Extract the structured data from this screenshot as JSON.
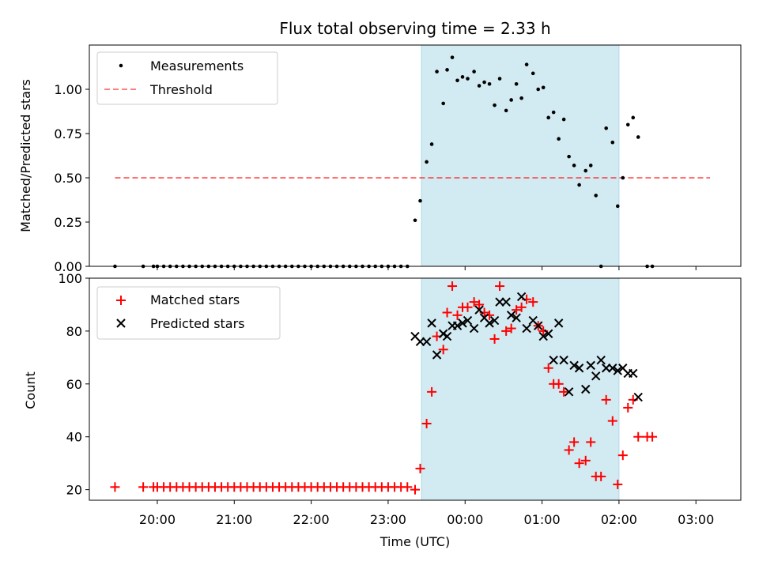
{
  "figure": {
    "title": "Flux total observing time = 2.33 h",
    "xlabel": "Time (UTC)"
  },
  "x_ticks": [
    "20:00",
    "21:00",
    "22:00",
    "23:00",
    "00:00",
    "01:00",
    "02:00",
    "03:00"
  ],
  "chart_data": [
    {
      "type": "scatter",
      "ylabel": "Matched/Predicted stars",
      "xlim": [
        "19:07",
        "03:35"
      ],
      "ylim": [
        0,
        1.25
      ],
      "y_ticks": [
        "0.00",
        "0.25",
        "0.50",
        "0.75",
        "1.00"
      ],
      "highlight_span": [
        "23:26",
        "02:00"
      ],
      "highlight_color": "#add8e6",
      "legend": {
        "placement": "upper left",
        "entries": [
          "Measurements",
          "Threshold"
        ]
      },
      "threshold": {
        "name": "Threshold",
        "value": 0.5,
        "x_start": "19:27",
        "x_end": "03:11",
        "color": "#ff0000",
        "style": "dashed"
      },
      "series": [
        {
          "name": "Measurements",
          "marker": "dot",
          "color": "#000000",
          "points": [
            [
              "19:27",
              0
            ],
            [
              "19:49",
              0
            ],
            [
              "19:57",
              0
            ],
            [
              "20:00",
              0
            ],
            [
              "20:05",
              0
            ],
            [
              "20:10",
              0
            ],
            [
              "20:15",
              0
            ],
            [
              "20:20",
              0
            ],
            [
              "20:25",
              0
            ],
            [
              "20:30",
              0
            ],
            [
              "20:35",
              0
            ],
            [
              "20:40",
              0
            ],
            [
              "20:45",
              0
            ],
            [
              "20:50",
              0
            ],
            [
              "20:55",
              0
            ],
            [
              "21:00",
              0
            ],
            [
              "21:05",
              0
            ],
            [
              "21:10",
              0
            ],
            [
              "21:15",
              0
            ],
            [
              "21:20",
              0
            ],
            [
              "21:25",
              0
            ],
            [
              "21:30",
              0
            ],
            [
              "21:35",
              0
            ],
            [
              "21:40",
              0
            ],
            [
              "21:45",
              0
            ],
            [
              "21:50",
              0
            ],
            [
              "21:55",
              0
            ],
            [
              "22:00",
              0
            ],
            [
              "22:05",
              0
            ],
            [
              "22:10",
              0
            ],
            [
              "22:15",
              0
            ],
            [
              "22:20",
              0
            ],
            [
              "22:25",
              0
            ],
            [
              "22:30",
              0
            ],
            [
              "22:35",
              0
            ],
            [
              "22:40",
              0
            ],
            [
              "22:45",
              0
            ],
            [
              "22:50",
              0
            ],
            [
              "22:55",
              0
            ],
            [
              "23:00",
              0
            ],
            [
              "23:05",
              0
            ],
            [
              "23:10",
              0
            ],
            [
              "23:15",
              0
            ],
            [
              "23:21",
              0.26
            ],
            [
              "23:25",
              0.37
            ],
            [
              "23:30",
              0.59
            ],
            [
              "23:34",
              0.69
            ],
            [
              "23:38",
              1.1
            ],
            [
              "23:43",
              0.92
            ],
            [
              "23:46",
              1.11
            ],
            [
              "23:50",
              1.18
            ],
            [
              "23:54",
              1.05
            ],
            [
              "23:58",
              1.07
            ],
            [
              "00:02",
              1.06
            ],
            [
              "00:07",
              1.1
            ],
            [
              "00:11",
              1.02
            ],
            [
              "00:15",
              1.04
            ],
            [
              "00:19",
              1.03
            ],
            [
              "00:23",
              0.91
            ],
            [
              "00:27",
              1.06
            ],
            [
              "00:32",
              0.88
            ],
            [
              "00:36",
              0.94
            ],
            [
              "00:40",
              1.03
            ],
            [
              "00:44",
              0.95
            ],
            [
              "00:48",
              1.14
            ],
            [
              "00:53",
              1.09
            ],
            [
              "00:57",
              1.0
            ],
            [
              "01:01",
              1.01
            ],
            [
              "01:05",
              0.84
            ],
            [
              "01:09",
              0.87
            ],
            [
              "01:13",
              0.72
            ],
            [
              "01:17",
              0.83
            ],
            [
              "01:21",
              0.62
            ],
            [
              "01:25",
              0.57
            ],
            [
              "01:29",
              0.46
            ],
            [
              "01:34",
              0.54
            ],
            [
              "01:38",
              0.57
            ],
            [
              "01:42",
              0.4
            ],
            [
              "01:46",
              0.0
            ],
            [
              "01:50",
              0.78
            ],
            [
              "01:55",
              0.7
            ],
            [
              "01:59",
              0.34
            ],
            [
              "02:03",
              0.5
            ],
            [
              "02:07",
              0.8
            ],
            [
              "02:11",
              0.84
            ],
            [
              "02:15",
              0.73
            ],
            [
              "02:22",
              0
            ],
            [
              "02:26",
              0
            ]
          ]
        }
      ]
    },
    {
      "type": "scatter",
      "ylabel": "Count",
      "xlim": [
        "19:07",
        "03:35"
      ],
      "ylim": [
        16,
        100
      ],
      "y_ticks": [
        "20",
        "40",
        "60",
        "80",
        "100"
      ],
      "highlight_span": [
        "23:26",
        "02:00"
      ],
      "highlight_color": "#add8e6",
      "legend": {
        "placement": "upper left",
        "entries": [
          "Matched stars",
          "Predicted stars"
        ]
      },
      "series": [
        {
          "name": "Matched stars",
          "marker": "plus",
          "color": "#ff0000",
          "points": [
            [
              "19:27",
              21
            ],
            [
              "19:49",
              21
            ],
            [
              "19:57",
              21
            ],
            [
              "20:00",
              21
            ],
            [
              "20:05",
              21
            ],
            [
              "20:10",
              21
            ],
            [
              "20:15",
              21
            ],
            [
              "20:20",
              21
            ],
            [
              "20:25",
              21
            ],
            [
              "20:30",
              21
            ],
            [
              "20:35",
              21
            ],
            [
              "20:40",
              21
            ],
            [
              "20:45",
              21
            ],
            [
              "20:50",
              21
            ],
            [
              "20:55",
              21
            ],
            [
              "21:00",
              21
            ],
            [
              "21:05",
              21
            ],
            [
              "21:10",
              21
            ],
            [
              "21:15",
              21
            ],
            [
              "21:20",
              21
            ],
            [
              "21:25",
              21
            ],
            [
              "21:30",
              21
            ],
            [
              "21:35",
              21
            ],
            [
              "21:40",
              21
            ],
            [
              "21:45",
              21
            ],
            [
              "21:50",
              21
            ],
            [
              "21:55",
              21
            ],
            [
              "22:00",
              21
            ],
            [
              "22:05",
              21
            ],
            [
              "22:10",
              21
            ],
            [
              "22:15",
              21
            ],
            [
              "22:20",
              21
            ],
            [
              "22:25",
              21
            ],
            [
              "22:30",
              21
            ],
            [
              "22:35",
              21
            ],
            [
              "22:40",
              21
            ],
            [
              "22:45",
              21
            ],
            [
              "22:50",
              21
            ],
            [
              "22:55",
              21
            ],
            [
              "23:00",
              21
            ],
            [
              "23:05",
              21
            ],
            [
              "23:10",
              21
            ],
            [
              "23:15",
              21
            ],
            [
              "23:21",
              20
            ],
            [
              "23:25",
              28
            ],
            [
              "23:30",
              45
            ],
            [
              "23:34",
              57
            ],
            [
              "23:38",
              78
            ],
            [
              "23:43",
              73
            ],
            [
              "23:46",
              87
            ],
            [
              "23:50",
              97
            ],
            [
              "23:54",
              86
            ],
            [
              "23:58",
              89
            ],
            [
              "00:02",
              89
            ],
            [
              "00:07",
              91
            ],
            [
              "00:11",
              90
            ],
            [
              "00:15",
              87
            ],
            [
              "00:19",
              86
            ],
            [
              "00:23",
              77
            ],
            [
              "00:27",
              97
            ],
            [
              "00:32",
              80
            ],
            [
              "00:36",
              81
            ],
            [
              "00:40",
              88
            ],
            [
              "00:44",
              89
            ],
            [
              "00:48",
              92
            ],
            [
              "00:53",
              91
            ],
            [
              "00:57",
              82
            ],
            [
              "01:01",
              80
            ],
            [
              "01:05",
              66
            ],
            [
              "01:09",
              60
            ],
            [
              "01:13",
              60
            ],
            [
              "01:17",
              57
            ],
            [
              "01:21",
              35
            ],
            [
              "01:25",
              38
            ],
            [
              "01:29",
              30
            ],
            [
              "01:34",
              31
            ],
            [
              "01:38",
              38
            ],
            [
              "01:42",
              25
            ],
            [
              "01:46",
              25
            ],
            [
              "01:50",
              54
            ],
            [
              "01:55",
              46
            ],
            [
              "01:59",
              22
            ],
            [
              "02:03",
              33
            ],
            [
              "02:07",
              51
            ],
            [
              "02:11",
              54
            ],
            [
              "02:15",
              40
            ],
            [
              "02:22",
              40
            ],
            [
              "02:26",
              40
            ]
          ]
        },
        {
          "name": "Predicted stars",
          "marker": "x",
          "color": "#000000",
          "points": [
            [
              "23:21",
              78
            ],
            [
              "23:25",
              76
            ],
            [
              "23:30",
              76
            ],
            [
              "23:34",
              83
            ],
            [
              "23:38",
              71
            ],
            [
              "23:43",
              79
            ],
            [
              "23:46",
              78
            ],
            [
              "23:50",
              82
            ],
            [
              "23:54",
              82
            ],
            [
              "23:58",
              83
            ],
            [
              "00:02",
              84
            ],
            [
              "00:07",
              81
            ],
            [
              "00:11",
              88
            ],
            [
              "00:15",
              85
            ],
            [
              "00:19",
              83
            ],
            [
              "00:23",
              84
            ],
            [
              "00:27",
              91
            ],
            [
              "00:32",
              91
            ],
            [
              "00:36",
              86
            ],
            [
              "00:40",
              85
            ],
            [
              "00:44",
              93
            ],
            [
              "00:48",
              81
            ],
            [
              "00:53",
              84
            ],
            [
              "00:57",
              82
            ],
            [
              "01:01",
              78
            ],
            [
              "01:05",
              79
            ],
            [
              "01:09",
              69
            ],
            [
              "01:13",
              83
            ],
            [
              "01:17",
              69
            ],
            [
              "01:21",
              57
            ],
            [
              "01:25",
              67
            ],
            [
              "01:29",
              66
            ],
            [
              "01:34",
              58
            ],
            [
              "01:38",
              67
            ],
            [
              "01:42",
              63
            ],
            [
              "01:46",
              69
            ],
            [
              "01:50",
              66
            ],
            [
              "01:55",
              66
            ],
            [
              "01:59",
              65
            ],
            [
              "02:03",
              66
            ],
            [
              "02:07",
              64
            ],
            [
              "02:11",
              64
            ],
            [
              "02:15",
              55
            ]
          ]
        }
      ]
    }
  ]
}
